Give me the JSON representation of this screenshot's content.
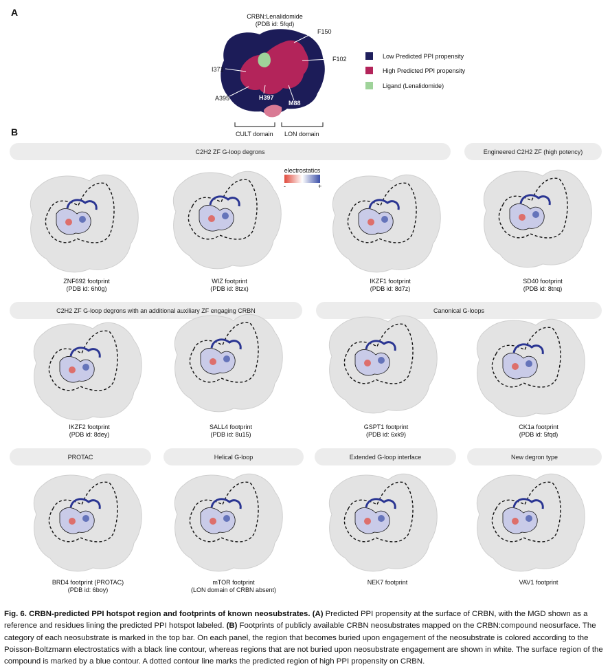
{
  "panel_a": {
    "letter": "A",
    "title_line1": "CRBN:Lenalidomide",
    "title_line2": "(PDB id: 5fqd)",
    "residues": {
      "f150": "F150",
      "f102": "F102",
      "i371": "I371",
      "a395": "A395",
      "h397": "H397",
      "m88": "M88"
    },
    "domains": {
      "cult": "CULT domain",
      "lon": "LON domain"
    },
    "legend": [
      {
        "label": "Low Predicted PPI propensity",
        "color": "#1f1f5c"
      },
      {
        "label": "High Predicted PPI propensity",
        "color": "#b3245a"
      },
      {
        "label": "Ligand (Lenalidomide)",
        "color": "#9fd39a"
      }
    ]
  },
  "panel_b": {
    "letter": "B",
    "electrostatics": {
      "label": "electrostatics",
      "minus": "-",
      "plus": "+"
    },
    "categories": {
      "zf_gloop": "C2H2 ZF G-loop degrons",
      "engineered": "Engineered C2H2 ZF (high potency)",
      "auxiliary": "C2H2 ZF G-loop degrons with an additional auxiliary ZF engaging CRBN",
      "canonical": "Canonical G-loops",
      "protac": "PROTAC",
      "helical": "Helical G-loop",
      "extended": "Extended G-loop interface",
      "new_degron": "New degron type"
    },
    "footprints": [
      {
        "name": "ZNF692 footprint",
        "pdb": "(PDB id: 6h0g)"
      },
      {
        "name": "WIZ footprint",
        "pdb": "(PDB id: 8tzx)"
      },
      {
        "name": "IKZF1 footprint",
        "pdb": "(PDB id: 8d7z)"
      },
      {
        "name": "SD40 footprint",
        "pdb": "(PDB id: 8tnq)"
      },
      {
        "name": "IKZF2 footprint",
        "pdb": "(PDB id: 8dey)"
      },
      {
        "name": "SALL4 footprint",
        "pdb": "(PDB id: 8u15)"
      },
      {
        "name": "GSPT1 footprint",
        "pdb": "(PDB id: 6xk9)"
      },
      {
        "name": "CK1a footprint",
        "pdb": "(PDB id: 5fqd)"
      },
      {
        "name": "BRD4 footprint (PROTAC)",
        "pdb": "(PDB id: 6boy)"
      },
      {
        "name": "mTOR footprint",
        "pdb": "(LON domain of CRBN absent)"
      },
      {
        "name": "NEK7 footprint",
        "pdb": ""
      },
      {
        "name": "VAV1 footprint",
        "pdb": ""
      }
    ]
  },
  "caption": {
    "bold_title": "Fig. 6. CRBN-predicted PPI hotspot region and footprints of known neosubstrates.",
    "a_label": "(A)",
    "a_text": " Predicted PPI propensity at the surface of CRBN, with the MGD shown as a reference and residues lining the predicted PPI hotspot labeled. ",
    "b_label": "(B)",
    "b_text": " Footprints of publicly available CRBN neosubstrates mapped on the CRBN:compound neosurface. The category of each neosubstrate is marked in the top bar. On each panel, the region that becomes buried upon engagement of the neosubstrate is colored according to the Poisson-Boltzmann electrostatics with a black line contour, whereas regions that are not buried upon neosubstrate engagement are shown in white. The surface region of the compound is marked by a blue contour. A dotted contour line marks the predicted region of high PPI propensity on CRBN."
  }
}
